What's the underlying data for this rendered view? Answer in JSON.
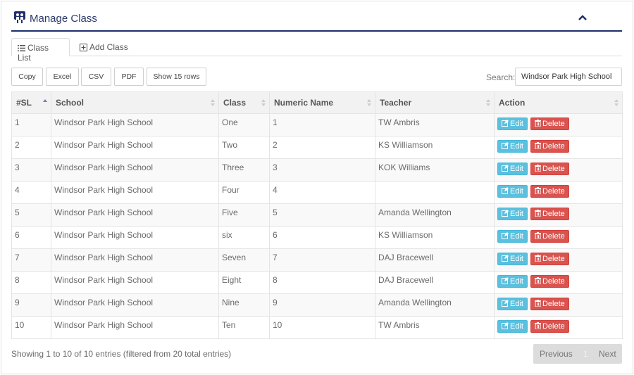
{
  "header": {
    "title": "Manage Class",
    "accent_color": "#1f2f6b",
    "logo_icon": "class-logo-icon",
    "collapse_icon": "chevron-up-icon"
  },
  "tabs": [
    {
      "label": "Class List",
      "icon": "list-icon",
      "active": true
    },
    {
      "label": "Add Class",
      "icon": "plus-square-icon",
      "active": false
    }
  ],
  "toolbar": {
    "buttons": [
      "Copy",
      "Excel",
      "CSV",
      "PDF",
      "Show 15 rows"
    ]
  },
  "search": {
    "label": "Search:",
    "value": "Windsor Park High School"
  },
  "table": {
    "columns": [
      "#SL",
      "School",
      "Class",
      "Numeric Name",
      "Teacher",
      "Action"
    ],
    "rows": [
      {
        "sl": "1",
        "school": "Windsor Park High School",
        "class": "One",
        "numeric": "1",
        "teacher": "TW Ambris"
      },
      {
        "sl": "2",
        "school": "Windsor Park High School",
        "class": "Two",
        "numeric": "2",
        "teacher": "KS Williamson"
      },
      {
        "sl": "3",
        "school": "Windsor Park High School",
        "class": "Three",
        "numeric": "3",
        "teacher": "KOK Williams"
      },
      {
        "sl": "4",
        "school": "Windsor Park High School",
        "class": "Four",
        "numeric": "4",
        "teacher": ""
      },
      {
        "sl": "5",
        "school": "Windsor Park High School",
        "class": "Five",
        "numeric": "5",
        "teacher": "Amanda Wellington"
      },
      {
        "sl": "6",
        "school": "Windsor Park High School",
        "class": "six",
        "numeric": "6",
        "teacher": "KS Williamson"
      },
      {
        "sl": "7",
        "school": "Windsor Park High School",
        "class": "Seven",
        "numeric": "7",
        "teacher": "DAJ Bracewell"
      },
      {
        "sl": "8",
        "school": "Windsor Park High School",
        "class": "Eight",
        "numeric": "8",
        "teacher": "DAJ Bracewell"
      },
      {
        "sl": "9",
        "school": "Windsor Park High School",
        "class": "Nine",
        "numeric": "9",
        "teacher": "Amanda Wellington"
      },
      {
        "sl": "10",
        "school": "Windsor Park High School",
        "class": "Ten",
        "numeric": "10",
        "teacher": "TW Ambris"
      }
    ],
    "edit_label": "Edit",
    "delete_label": "Delete",
    "edit_color": "#5bc0de",
    "delete_color": "#d9534f"
  },
  "footer": {
    "info": "Showing 1 to 10 of 10 entries (filtered from 20 total entries)",
    "prev_label": "Previous",
    "page": "1",
    "next_label": "Next"
  }
}
